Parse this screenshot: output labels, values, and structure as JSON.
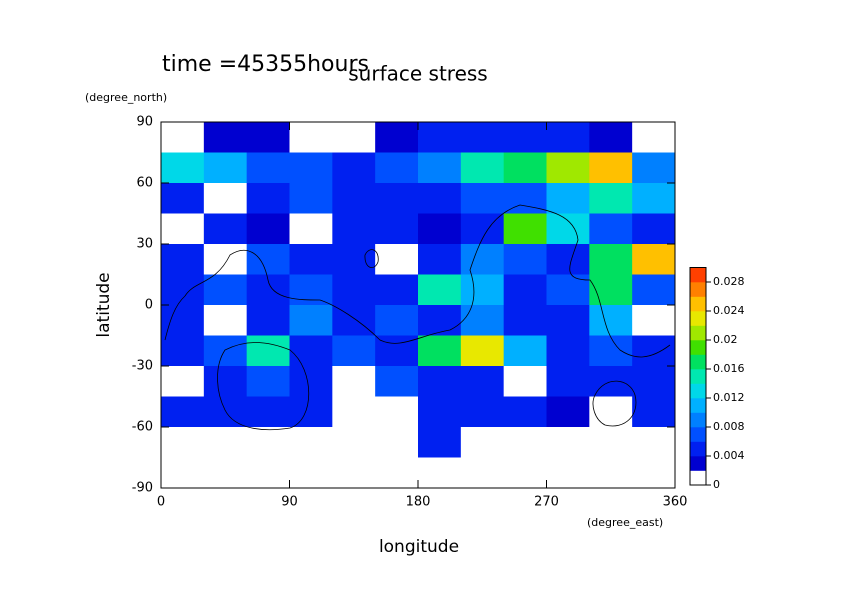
{
  "chart_data": {
    "type": "contour",
    "title": "surface stress",
    "subtitle": "time =45355hours",
    "x_label": "longitude",
    "x_units": "(degree_east)",
    "y_label": "latitude",
    "y_units": "(degree_north)",
    "xlim": [
      0,
      360
    ],
    "xticks": [
      0,
      90,
      180,
      270,
      360
    ],
    "ylim": [
      -90,
      90
    ],
    "yticks": [
      -90,
      -60,
      -30,
      0,
      30,
      60,
      90
    ],
    "x": [
      15,
      45,
      75,
      105,
      135,
      165,
      195,
      225,
      255,
      285,
      315,
      345
    ],
    "y": [
      82.5,
      67.5,
      52.5,
      37.5,
      22.5,
      7.5,
      -7.5,
      -22.5,
      -37.5,
      -52.5,
      -67.5,
      -82.5
    ],
    "z": [
      [
        0,
        0.002,
        0.002,
        0.001,
        0.001,
        0.002,
        0.004,
        0.004,
        0.004,
        0.004,
        0.002,
        0.001
      ],
      [
        0.012,
        0.01,
        0.006,
        0.006,
        0.005,
        0.006,
        0.008,
        0.014,
        0.016,
        0.02,
        0.024,
        0.008
      ],
      [
        0.004,
        0.001,
        0.004,
        0.006,
        0.004,
        0.004,
        0.004,
        0.006,
        0.006,
        0.01,
        0.014,
        0.01
      ],
      [
        0.001,
        0.004,
        0.002,
        0.001,
        0.004,
        0.004,
        0.002,
        0.004,
        0.018,
        0.012,
        0.006,
        0.004
      ],
      [
        0.004,
        0.001,
        0.006,
        0.004,
        0.004,
        0.001,
        0.004,
        0.008,
        0.006,
        0.004,
        0.016,
        0.024
      ],
      [
        0.004,
        0.006,
        0.004,
        0.006,
        0.004,
        0.004,
        0.014,
        0.01,
        0.004,
        0.006,
        0.016,
        0.006
      ],
      [
        0.004,
        0.001,
        0.004,
        0.008,
        0.004,
        0.006,
        0.004,
        0.008,
        0.004,
        0.004,
        0.01,
        0.001
      ],
      [
        0.004,
        0.006,
        0.014,
        0.004,
        0.006,
        0.004,
        0.016,
        0.022,
        0.01,
        0.004,
        0.006,
        0.004
      ],
      [
        0.001,
        0.004,
        0.006,
        0.004,
        0.001,
        0.006,
        0.004,
        0.004,
        0.001,
        0.004,
        0.004,
        0.004
      ],
      [
        0.004,
        0.004,
        0.004,
        0.004,
        0.001,
        0.001,
        0.004,
        0.004,
        0.004,
        0.002,
        0.001,
        0.004
      ],
      [
        0.001,
        0.001,
        0.001,
        0.001,
        0.001,
        0.001,
        0.004,
        0.001,
        0.001,
        0.001,
        0.001,
        0.001
      ],
      [
        0,
        0,
        0,
        0,
        0,
        0,
        0,
        0,
        0,
        0,
        0,
        0
      ]
    ],
    "clim": [
      0,
      0.03
    ],
    "cticks": [
      0,
      0.004,
      0.008,
      0.012,
      0.016,
      0.02,
      0.024,
      0.028
    ],
    "colors": [
      "#ffffff",
      "#0000d0",
      "#0020f0",
      "#0050ff",
      "#0080ff",
      "#00b0ff",
      "#00d8e8",
      "#00e8b0",
      "#00e060",
      "#40e000",
      "#a0e800",
      "#e8e800",
      "#ffc000",
      "#ff8000",
      "#ff4000"
    ]
  }
}
